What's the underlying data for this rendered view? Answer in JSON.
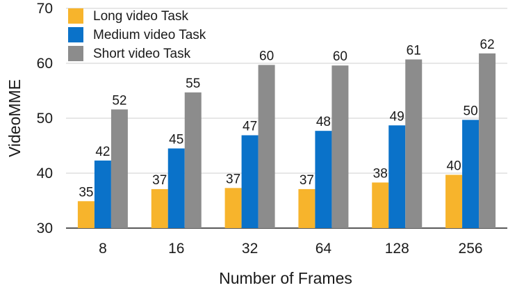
{
  "chart_data": {
    "type": "bar",
    "xlabel": "Number of Frames",
    "ylabel": "VideoMME",
    "categories": [
      "8",
      "16",
      "32",
      "64",
      "128",
      "256"
    ],
    "ylim": [
      30,
      70
    ],
    "yticks": [
      "30",
      "40",
      "50",
      "60",
      "70"
    ],
    "grid": "horizontal",
    "legend_position": "top-left",
    "series": [
      {
        "name": "Long video Task",
        "color": "#F7B42C",
        "values": [
          34.9,
          37.1,
          37.3,
          37.1,
          38.3,
          39.7
        ],
        "labels": [
          "35",
          "37",
          "37",
          "37",
          "38",
          "40"
        ]
      },
      {
        "name": "Medium video Task",
        "color": "#0A72C9",
        "values": [
          42.3,
          44.5,
          46.9,
          47.7,
          48.7,
          49.7
        ],
        "labels": [
          "42",
          "45",
          "47",
          "48",
          "49",
          "50"
        ]
      },
      {
        "name": "Short video Task",
        "color": "#8C8C8C",
        "values": [
          51.6,
          54.7,
          59.7,
          59.6,
          60.7,
          61.8
        ],
        "labels": [
          "52",
          "55",
          "60",
          "60",
          "61",
          "62"
        ]
      }
    ]
  }
}
